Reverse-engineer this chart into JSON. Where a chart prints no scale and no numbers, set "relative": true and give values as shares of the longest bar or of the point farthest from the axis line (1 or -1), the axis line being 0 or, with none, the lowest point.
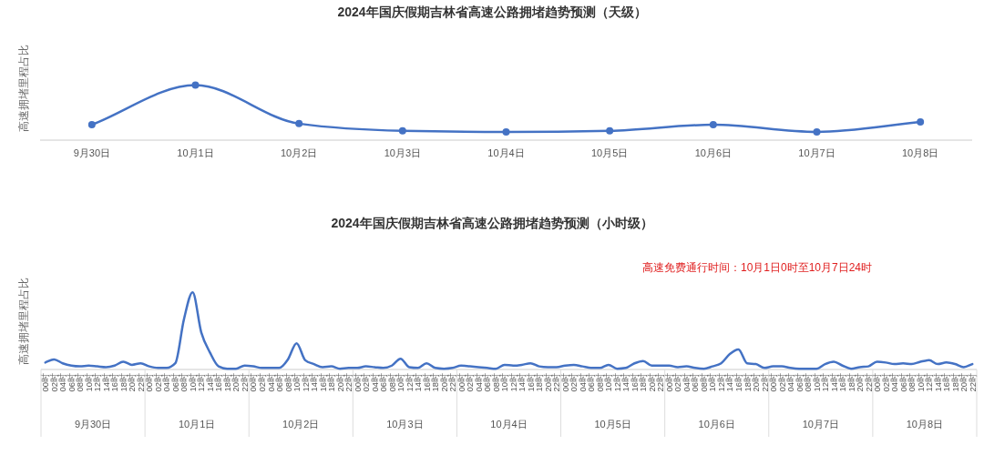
{
  "chart_data": [
    {
      "type": "line",
      "title": "2024年国庆假期吉林省高速公路拥堵趋势预测（天级）",
      "ylabel": "高速拥堵里程占比",
      "relative": true,
      "marker": "circle",
      "categories": [
        "9月30日",
        "10月1日",
        "10月2日",
        "10月3日",
        "10月4日",
        "10月5日",
        "10月6日",
        "10月7日",
        "10月8日"
      ],
      "series": [
        {
          "color": "#4472c4",
          "values": [
            0.28,
            1,
            0.3,
            0.17,
            0.15,
            0.17,
            0.28,
            0.15,
            0.33
          ]
        }
      ]
    },
    {
      "type": "line",
      "title": "2024年国庆假期吉林省高速公路拥堵趋势预测（小时级）",
      "ylabel": "高速拥堵里程占比",
      "relative": true,
      "categories": [
        "00时",
        "02时",
        "04时",
        "06时",
        "08时",
        "10时",
        "12时",
        "14时",
        "16时",
        "18时",
        "20时",
        "22时",
        "00时",
        "02时",
        "04时",
        "06时",
        "08时",
        "10时",
        "12时",
        "14时",
        "16时",
        "18时",
        "20时",
        "22时",
        "00时",
        "02时",
        "04时",
        "06时",
        "08时",
        "10时",
        "12时",
        "14时",
        "16时",
        "18时",
        "20时",
        "22时",
        "00时",
        "02时",
        "04时",
        "06时",
        "08时",
        "10时",
        "12时",
        "14时",
        "16时",
        "18时",
        "20时",
        "22时",
        "00时",
        "02时",
        "04时",
        "06时",
        "08时",
        "10时",
        "12时",
        "14时",
        "16时",
        "18时",
        "20时",
        "22时",
        "00时",
        "02时",
        "04时",
        "06时",
        "08时",
        "10时",
        "12时",
        "14时",
        "16时",
        "18时",
        "20时",
        "22时",
        "00时",
        "02时",
        "04时",
        "06时",
        "08时",
        "10时",
        "12时",
        "14时",
        "16时",
        "18时",
        "20时",
        "22时",
        "00时",
        "02时",
        "04时",
        "06时",
        "08时",
        "10时",
        "12时",
        "14时",
        "16时",
        "18时",
        "20时",
        "22时",
        "00时",
        "02时",
        "04时",
        "06时",
        "08时",
        "10时",
        "12时",
        "14时",
        "16时",
        "18时",
        "20时",
        "22时"
      ],
      "series": [
        {
          "color": "#4472c4",
          "values": [
            0.09,
            0.13,
            0.08,
            0.05,
            0.04,
            0.05,
            0.04,
            0.03,
            0.05,
            0.1,
            0.06,
            0.08,
            0.04,
            0.02,
            0.02,
            0.08,
            0.65,
            1,
            0.48,
            0.22,
            0.04,
            0.01,
            0.01,
            0.05,
            0.04,
            0.02,
            0.02,
            0.02,
            0.13,
            0.34,
            0.12,
            0.07,
            0.03,
            0.04,
            0.01,
            0.02,
            0.02,
            0.04,
            0.03,
            0.02,
            0.05,
            0.14,
            0.03,
            0.02,
            0.08,
            0.02,
            0.01,
            0.02,
            0.05,
            0.04,
            0.03,
            0.02,
            0.01,
            0.06,
            0.05,
            0.06,
            0.08,
            0.04,
            0.03,
            0.03,
            0.05,
            0.06,
            0.04,
            0.02,
            0.02,
            0.06,
            0.01,
            0.02,
            0.08,
            0.11,
            0.05,
            0.05,
            0.05,
            0.03,
            0.04,
            0.02,
            0.01,
            0.04,
            0.08,
            0.2,
            0.26,
            0.08,
            0.07,
            0.02,
            0.04,
            0.04,
            0.02,
            0.01,
            0.01,
            0.01,
            0.07,
            0.1,
            0.05,
            0.01,
            0.03,
            0.04,
            0.1,
            0.09,
            0.07,
            0.08,
            0.07,
            0.1,
            0.12,
            0.07,
            0.09,
            0.07,
            0.03,
            0.07
          ]
        }
      ],
      "annotations": [
        "高速免费通行时间：10月1日0时至10月7日24时",
        "9月30日",
        "10月1日",
        "10月2日",
        "10月3日",
        "10月4日",
        "10月5日",
        "10月6日",
        "10月7日",
        "10月8日"
      ]
    }
  ]
}
